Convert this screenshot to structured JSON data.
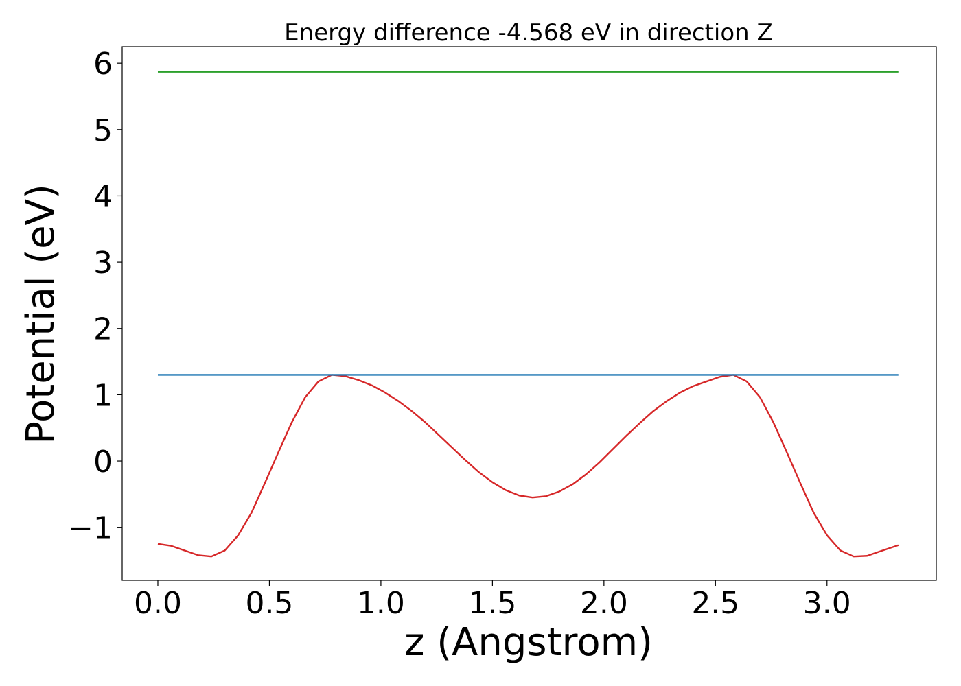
{
  "chart_data": {
    "type": "line",
    "title": "Energy difference -4.568 eV in direction Z",
    "xlabel": "z (Angstrom)",
    "ylabel": "Potential (eV)",
    "xlim": [
      -0.16,
      3.49
    ],
    "ylim": [
      -1.8,
      6.25
    ],
    "xticks": [
      0.0,
      0.5,
      1.0,
      1.5,
      2.0,
      2.5,
      3.0
    ],
    "xtick_labels": [
      "0.0",
      "0.5",
      "1.0",
      "1.5",
      "2.0",
      "2.5",
      "3.0"
    ],
    "yticks": [
      -1,
      0,
      1,
      2,
      3,
      4,
      5,
      6
    ],
    "ytick_labels": [
      "−1",
      "0",
      "1",
      "2",
      "3",
      "4",
      "5",
      "6"
    ],
    "grid": false,
    "colors": {
      "potential": "#d62728",
      "max_level": "#1f77b4",
      "vacuum_level": "#2ca02c"
    },
    "series": [
      {
        "color_key": "potential",
        "x": [
          0.0,
          0.06,
          0.12,
          0.18,
          0.24,
          0.3,
          0.36,
          0.42,
          0.48,
          0.54,
          0.6,
          0.66,
          0.72,
          0.78,
          0.84,
          0.9,
          0.96,
          1.02,
          1.08,
          1.14,
          1.2,
          1.26,
          1.32,
          1.38,
          1.44,
          1.5,
          1.56,
          1.62,
          1.68,
          1.74,
          1.8,
          1.86,
          1.92,
          1.98,
          2.04,
          2.1,
          2.16,
          2.22,
          2.28,
          2.34,
          2.4,
          2.46,
          2.52,
          2.58,
          2.64,
          2.7,
          2.76,
          2.82,
          2.88,
          2.94,
          3.0,
          3.06,
          3.12,
          3.18,
          3.24,
          3.32
        ],
        "y": [
          -1.25,
          -1.28,
          -1.35,
          -1.42,
          -1.44,
          -1.35,
          -1.12,
          -0.78,
          -0.33,
          0.13,
          0.58,
          0.96,
          1.2,
          1.3,
          1.28,
          1.22,
          1.14,
          1.03,
          0.9,
          0.75,
          0.58,
          0.39,
          0.2,
          0.01,
          -0.17,
          -0.32,
          -0.44,
          -0.52,
          -0.55,
          -0.53,
          -0.46,
          -0.35,
          -0.2,
          -0.02,
          0.18,
          0.38,
          0.57,
          0.75,
          0.9,
          1.03,
          1.13,
          1.2,
          1.27,
          1.3,
          1.2,
          0.96,
          0.58,
          0.13,
          -0.33,
          -0.78,
          -1.12,
          -1.35,
          -1.44,
          -1.43,
          -1.36,
          -1.27
        ]
      },
      {
        "color_key": "max_level",
        "x": [
          0.0,
          3.32
        ],
        "y": [
          1.3,
          1.3
        ]
      },
      {
        "color_key": "vacuum_level",
        "x": [
          0.0,
          3.32
        ],
        "y": [
          5.87,
          5.87
        ]
      }
    ]
  }
}
